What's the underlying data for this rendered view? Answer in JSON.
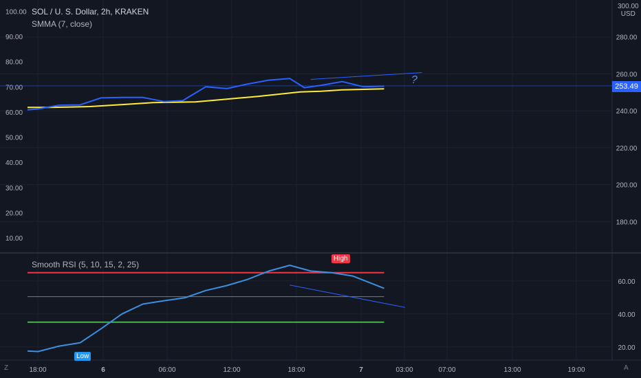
{
  "header": {
    "title": "SOL / U. S. Dollar, 2h, KRAKEN",
    "indicator": "SMMA (7, close)"
  },
  "price_axis": {
    "currency": "USD",
    "last_price": "253.49",
    "top_label": "300.00"
  },
  "rsi_panel": {
    "label": "Smooth RSI  (5, 10, 15, 2, 25)",
    "high_tag": "High",
    "low_tag": "Low"
  },
  "annotation": {
    "question": "?"
  },
  "bottom_buttons": {
    "left": "Z",
    "right": "A"
  },
  "colors": {
    "background": "#131722",
    "price_line": "#2962ff",
    "smma_line": "#ffeb3b",
    "rsi_line": "#3d8fe0",
    "upper_band": "#f23645",
    "lower_band": "#4caf50",
    "mid_band": "#787b86"
  },
  "chart_data": [
    {
      "type": "line",
      "panel": "price",
      "x_labels": [
        "18:00",
        "6",
        "06:00",
        "12:00",
        "18:00",
        "7",
        "03:00",
        "07:00",
        "13:00",
        "19:00"
      ],
      "right_axis": {
        "ticks": [
          180,
          200,
          220,
          240,
          260,
          280
        ],
        "range": [
          163,
          300
        ]
      },
      "left_axis": {
        "ticks": [
          10,
          20,
          30,
          40,
          50,
          60,
          70,
          80,
          90,
          100
        ],
        "range": [
          4,
          104.5
        ]
      },
      "series": [
        {
          "role": "price",
          "values": [
            [
              0,
              240.5
            ],
            [
              0.5,
              241
            ],
            [
              1.5,
              243
            ],
            [
              2.5,
              243.2
            ],
            [
              3.5,
              247
            ],
            [
              4.5,
              247.2
            ],
            [
              5.5,
              247.2
            ],
            [
              6.5,
              245
            ],
            [
              7.4,
              245.5
            ],
            [
              8.5,
              253
            ],
            [
              9.5,
              252
            ],
            [
              10.5,
              254.5
            ],
            [
              11.5,
              256.6
            ],
            [
              12.5,
              257.5
            ],
            [
              13.2,
              252.5
            ],
            [
              14.0,
              253.8
            ],
            [
              15.0,
              255.8
            ],
            [
              16.0,
              253
            ],
            [
              17.0,
              253.3
            ]
          ]
        },
        {
          "role": "smma",
          "values": [
            [
              0,
              241.8
            ],
            [
              1.0,
              241.8
            ],
            [
              2.0,
              242
            ],
            [
              3.0,
              242.3
            ],
            [
              4.0,
              243
            ],
            [
              5.0,
              243.7
            ],
            [
              6.0,
              244.4
            ],
            [
              7.0,
              244.6
            ],
            [
              8.0,
              244.8
            ],
            [
              9.0,
              245.8
            ],
            [
              10.0,
              246.8
            ],
            [
              11.0,
              247.8
            ],
            [
              12.0,
              249
            ],
            [
              13.0,
              250.2
            ],
            [
              14.0,
              250.6
            ],
            [
              15.0,
              251.3
            ],
            [
              16.0,
              251.6
            ],
            [
              17.0,
              251.9
            ]
          ]
        }
      ],
      "trend_line": [
        [
          13.5,
          257
        ],
        [
          18.8,
          260.7
        ]
      ],
      "last_price_level": 253.49
    },
    {
      "type": "line",
      "panel": "rsi",
      "y_axis": {
        "ticks": [
          20,
          40,
          60
        ],
        "range": [
          12,
          77
        ]
      },
      "series": [
        {
          "role": "smooth_rsi",
          "values": [
            [
              0,
              17.5
            ],
            [
              0.5,
              17.2
            ],
            [
              1.5,
              20.5
            ],
            [
              2.5,
              22.5
            ],
            [
              3.5,
              31
            ],
            [
              4.5,
              40
            ],
            [
              5.5,
              46
            ],
            [
              6.5,
              48
            ],
            [
              7.5,
              49.8
            ],
            [
              8.5,
              54.2
            ],
            [
              9.5,
              57.2
            ],
            [
              10.5,
              61
            ],
            [
              11.5,
              66
            ],
            [
              12.5,
              69.5
            ],
            [
              13.5,
              66
            ],
            [
              14.5,
              65
            ],
            [
              15.5,
              63
            ],
            [
              16.5,
              58
            ],
            [
              17.0,
              55.5
            ]
          ]
        }
      ],
      "levels": {
        "upper": 65,
        "middle": 50.5,
        "lower": 35
      },
      "trend_line": [
        [
          12.5,
          57.5
        ],
        [
          18.0,
          44
        ]
      ],
      "high_marker_index": 12.5,
      "low_marker_index": 2.5
    }
  ]
}
